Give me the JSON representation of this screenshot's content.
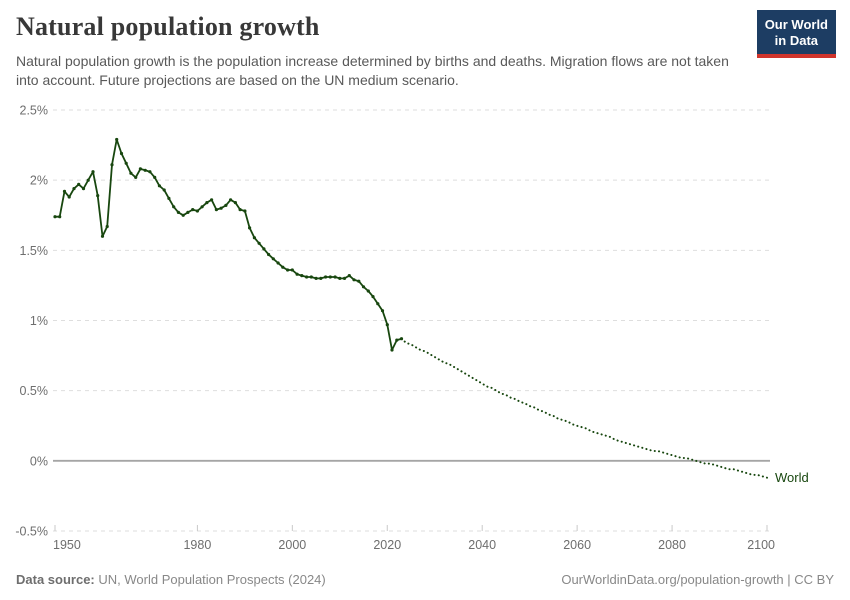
{
  "chart_data": {
    "type": "line",
    "title": "Natural population growth",
    "subtitle": "Natural population growth is the population increase determined by births and deaths. Migration flows are not taken into account. Future projections are based on the UN medium scenario.",
    "entity_label": "World",
    "line_color": "#18470f",
    "xlabel": "",
    "ylabel": "",
    "x_range": [
      1950,
      2100
    ],
    "y_range": [
      -0.5,
      2.5
    ],
    "grid": "dashed-horizontal, solid zero line",
    "legend_position": "end-of-line label",
    "y_ticks": [
      "2.5%",
      "2%",
      "1.5%",
      "1%",
      "0.5%",
      "0%",
      "-0.5%"
    ],
    "y_tick_values": [
      2.5,
      2,
      1.5,
      1,
      0.5,
      0,
      -0.5
    ],
    "x_ticks": [
      "1950",
      "1980",
      "2000",
      "2020",
      "2040",
      "2060",
      "2080",
      "2100"
    ],
    "x_tick_values": [
      1950,
      1980,
      2000,
      2020,
      2040,
      2060,
      2080,
      2100
    ],
    "unit": "percent",
    "series": [
      {
        "name": "World — estimates",
        "line_style": "solid",
        "markers": true,
        "start_year": 1950,
        "values": [
          1.74,
          1.74,
          1.92,
          1.88,
          1.94,
          1.97,
          1.94,
          2.0,
          2.06,
          1.89,
          1.6,
          1.67,
          2.11,
          2.29,
          2.19,
          2.12,
          2.05,
          2.02,
          2.08,
          2.07,
          2.06,
          2.02,
          1.96,
          1.93,
          1.87,
          1.81,
          1.77,
          1.75,
          1.77,
          1.79,
          1.78,
          1.81,
          1.84,
          1.86,
          1.79,
          1.8,
          1.82,
          1.86,
          1.84,
          1.79,
          1.78,
          1.66,
          1.59,
          1.55,
          1.51,
          1.47,
          1.44,
          1.41,
          1.38,
          1.36,
          1.36,
          1.33,
          1.32,
          1.31,
          1.31,
          1.3,
          1.3,
          1.31,
          1.31,
          1.31,
          1.3,
          1.3,
          1.32,
          1.29,
          1.28,
          1.24,
          1.21,
          1.17,
          1.12,
          1.07,
          0.97,
          0.79,
          0.86,
          0.87
        ]
      },
      {
        "name": "World — UN medium scenario projection",
        "line_style": "dotted",
        "markers": false,
        "start_year": 2023,
        "values": [
          0.87,
          0.84,
          0.83,
          0.81,
          0.79,
          0.78,
          0.76,
          0.74,
          0.72,
          0.7,
          0.69,
          0.67,
          0.65,
          0.63,
          0.61,
          0.59,
          0.57,
          0.55,
          0.53,
          0.52,
          0.5,
          0.48,
          0.47,
          0.45,
          0.44,
          0.42,
          0.41,
          0.39,
          0.38,
          0.36,
          0.35,
          0.33,
          0.32,
          0.3,
          0.29,
          0.28,
          0.26,
          0.25,
          0.24,
          0.23,
          0.21,
          0.2,
          0.19,
          0.18,
          0.17,
          0.15,
          0.14,
          0.13,
          0.12,
          0.11,
          0.1,
          0.09,
          0.08,
          0.07,
          0.07,
          0.06,
          0.05,
          0.04,
          0.03,
          0.02,
          0.02,
          0.01,
          0.0,
          -0.01,
          -0.02,
          -0.02,
          -0.03,
          -0.04,
          -0.05,
          -0.06,
          -0.06,
          -0.07,
          -0.08,
          -0.09,
          -0.1,
          -0.1,
          -0.11,
          -0.12
        ]
      }
    ]
  },
  "header": {
    "logo_line1": "Our World",
    "logo_line2": "in Data",
    "logo_bg_color": "#1d3d63",
    "logo_accent_color": "#d0342c"
  },
  "footer": {
    "source_label": "Data source:",
    "source_value": "UN, World Population Prospects (2024)",
    "attribution": "OurWorldinData.org/population-growth | CC BY"
  }
}
